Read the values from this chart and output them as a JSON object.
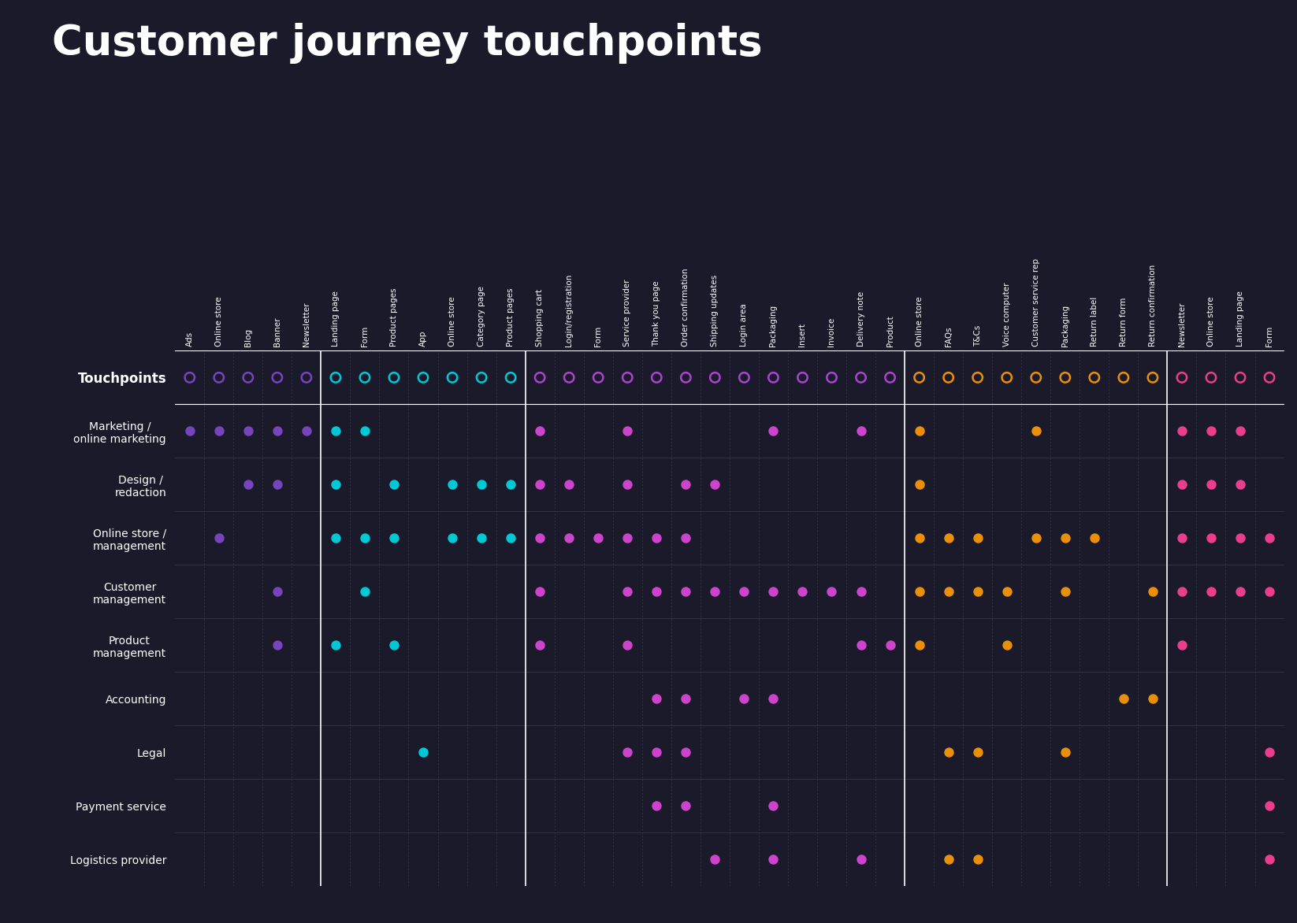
{
  "title": "Customer journey touchpoints",
  "bg_color": "#1a1a2a",
  "text_color": "#ffffff",
  "columns": [
    "Ads",
    "Online store",
    "Blog",
    "Banner",
    "Newsletter",
    "Landing page",
    "Form",
    "Product pages",
    "App",
    "Online store",
    "Category page",
    "Product pages",
    "Shopping cart",
    "Login/registration",
    "Form",
    "Service provider",
    "Thank you page",
    "Order confirmation",
    "Shipping updates",
    "Login area",
    "Packaging",
    "Insert",
    "Invoice",
    "Delivery note",
    "Product",
    "Online store",
    "FAQs",
    "T&Cs",
    "Voice computer",
    "Customer service rep",
    "Packaging",
    "Return label",
    "Return form",
    "Return confirmation",
    "Newsletter",
    "Online store",
    "Landing page",
    "Form"
  ],
  "group_sep_after": [
    4,
    11,
    24,
    33
  ],
  "group_colors": [
    "#7744bb",
    "#00c8d4",
    "#aa44cc",
    "#e8900a",
    "#e83e8c"
  ],
  "rows": [
    "Touchpoints",
    "Marketing /\nonline marketing",
    "Design /\nredaction",
    "Online store /\nmanagement",
    "Customer\nmanagement",
    "Product\nmanagement",
    "Accounting",
    "Legal",
    "Payment service",
    "Logistics provider"
  ],
  "dot_data": {
    "1": [
      1,
      1,
      1,
      1,
      1,
      1,
      1,
      0,
      0,
      0,
      0,
      0,
      1,
      0,
      0,
      1,
      0,
      0,
      0,
      0,
      1,
      0,
      0,
      1,
      0,
      1,
      0,
      0,
      0,
      1,
      0,
      0,
      0,
      0,
      1,
      1,
      1,
      0
    ],
    "2": [
      0,
      0,
      1,
      1,
      0,
      1,
      0,
      1,
      0,
      1,
      1,
      1,
      1,
      1,
      0,
      1,
      0,
      1,
      1,
      0,
      0,
      0,
      0,
      0,
      0,
      1,
      0,
      0,
      0,
      0,
      0,
      0,
      0,
      0,
      1,
      1,
      1,
      0
    ],
    "3": [
      0,
      1,
      0,
      0,
      0,
      1,
      1,
      1,
      0,
      1,
      1,
      1,
      1,
      1,
      1,
      1,
      1,
      1,
      0,
      0,
      0,
      0,
      0,
      0,
      0,
      1,
      1,
      1,
      0,
      1,
      1,
      1,
      0,
      0,
      1,
      1,
      1,
      1
    ],
    "4": [
      0,
      0,
      0,
      1,
      0,
      0,
      1,
      0,
      0,
      0,
      0,
      0,
      1,
      0,
      0,
      1,
      1,
      1,
      1,
      1,
      1,
      1,
      1,
      1,
      0,
      1,
      1,
      1,
      1,
      0,
      1,
      0,
      0,
      1,
      1,
      1,
      1,
      1
    ],
    "5": [
      0,
      0,
      0,
      1,
      0,
      1,
      0,
      1,
      0,
      0,
      0,
      0,
      1,
      0,
      0,
      1,
      0,
      0,
      0,
      0,
      0,
      0,
      0,
      1,
      1,
      1,
      0,
      0,
      1,
      0,
      0,
      0,
      0,
      0,
      1,
      0,
      0,
      0
    ],
    "6": [
      0,
      0,
      0,
      0,
      0,
      0,
      0,
      0,
      0,
      0,
      0,
      0,
      0,
      0,
      0,
      0,
      1,
      1,
      0,
      1,
      1,
      0,
      0,
      0,
      0,
      0,
      0,
      0,
      0,
      0,
      0,
      0,
      1,
      1,
      0,
      0,
      0,
      0
    ],
    "7": [
      0,
      0,
      0,
      0,
      0,
      0,
      0,
      0,
      1,
      0,
      0,
      0,
      0,
      0,
      0,
      1,
      1,
      1,
      0,
      0,
      0,
      0,
      0,
      0,
      0,
      0,
      1,
      1,
      0,
      0,
      1,
      0,
      0,
      0,
      0,
      0,
      0,
      1
    ],
    "8": [
      0,
      0,
      0,
      0,
      0,
      0,
      0,
      0,
      0,
      0,
      0,
      0,
      0,
      0,
      0,
      0,
      1,
      1,
      0,
      0,
      1,
      0,
      0,
      0,
      0,
      0,
      0,
      0,
      0,
      0,
      0,
      0,
      0,
      0,
      0,
      0,
      0,
      1
    ],
    "9": [
      0,
      0,
      0,
      0,
      0,
      0,
      0,
      0,
      0,
      0,
      0,
      0,
      0,
      0,
      0,
      0,
      0,
      0,
      1,
      0,
      1,
      0,
      0,
      1,
      0,
      0,
      1,
      1,
      0,
      0,
      0,
      0,
      0,
      0,
      0,
      0,
      0,
      1
    ]
  }
}
